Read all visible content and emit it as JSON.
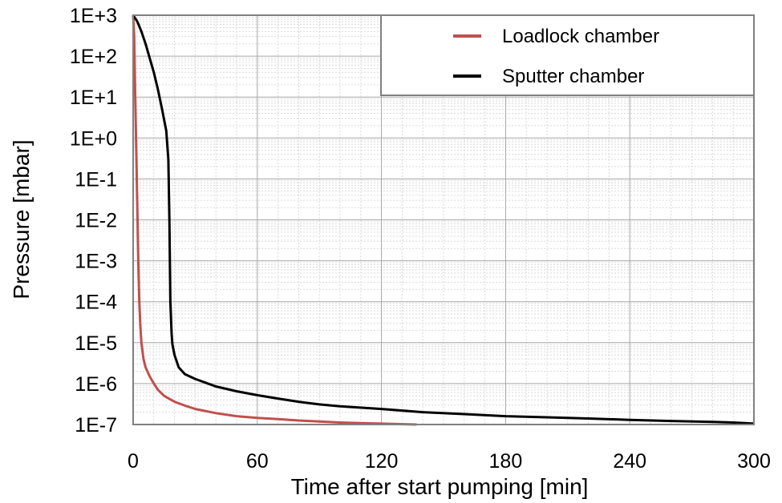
{
  "chart_data": {
    "type": "line",
    "title": "",
    "xlabel": "Time after start pumping [min]",
    "ylabel": "Pressure [mbar]",
    "xlim": [
      0,
      300
    ],
    "ylim": [
      1e-07,
      1000
    ],
    "yscale": "log",
    "x_ticks": [
      0,
      60,
      120,
      180,
      240,
      300
    ],
    "x_tick_labels": [
      "0",
      "60",
      "120",
      "180",
      "240",
      "300"
    ],
    "y_ticks": [
      1e-07,
      1e-06,
      1e-05,
      0.0001,
      0.001,
      0.01,
      0.1,
      1,
      10,
      100,
      1000
    ],
    "y_tick_labels": [
      "1E-7",
      "1E-6",
      "1E-5",
      "1E-4",
      "1E-3",
      "1E-2",
      "1E-1",
      "1E+0",
      "1E+1",
      "1E+2",
      "1E+3"
    ],
    "grid": true,
    "legend_position": "top-right",
    "series": [
      {
        "name": "Loadlock chamber",
        "color": "#c0504d",
        "x": [
          0,
          0.5,
          1,
          1.5,
          2,
          2.5,
          3,
          3.5,
          4,
          5,
          6,
          8,
          10,
          12,
          15,
          20,
          25,
          30,
          40,
          50,
          60,
          70,
          80,
          90,
          100,
          110,
          120,
          130,
          137
        ],
        "y": [
          1000,
          300,
          10,
          0.5,
          0.02,
          0.001,
          0.0001,
          2.5e-05,
          1e-05,
          4e-06,
          2.5e-06,
          1.5e-06,
          1e-06,
          7e-07,
          5e-07,
          3.6e-07,
          2.9e-07,
          2.4e-07,
          1.9e-07,
          1.6e-07,
          1.45e-07,
          1.35e-07,
          1.25e-07,
          1.18e-07,
          1.12e-07,
          1.08e-07,
          1.05e-07,
          1.02e-07,
          1e-07
        ]
      },
      {
        "name": "Sputter chamber",
        "color": "#000000",
        "x": [
          0,
          2,
          4,
          6,
          8,
          10,
          12,
          14,
          16,
          17,
          17.5,
          18,
          18.3,
          18.6,
          19,
          20,
          22,
          25,
          30,
          35,
          40,
          50,
          60,
          70,
          80,
          90,
          100,
          120,
          140,
          160,
          180,
          200,
          220,
          240,
          260,
          280,
          290,
          300
        ],
        "y": [
          1000,
          700,
          400,
          200,
          90,
          40,
          15,
          5,
          1.5,
          0.3,
          0.01,
          0.0001,
          4e-05,
          1.6e-05,
          9e-06,
          5e-06,
          2.5e-06,
          1.7e-06,
          1.3e-06,
          1.05e-06,
          8.5e-07,
          6.5e-07,
          5.2e-07,
          4.3e-07,
          3.6e-07,
          3.1e-07,
          2.8e-07,
          2.4e-07,
          2e-07,
          1.8e-07,
          1.6e-07,
          1.5e-07,
          1.4e-07,
          1.3e-07,
          1.22e-07,
          1.16e-07,
          1.12e-07,
          1.05e-07
        ]
      }
    ]
  }
}
